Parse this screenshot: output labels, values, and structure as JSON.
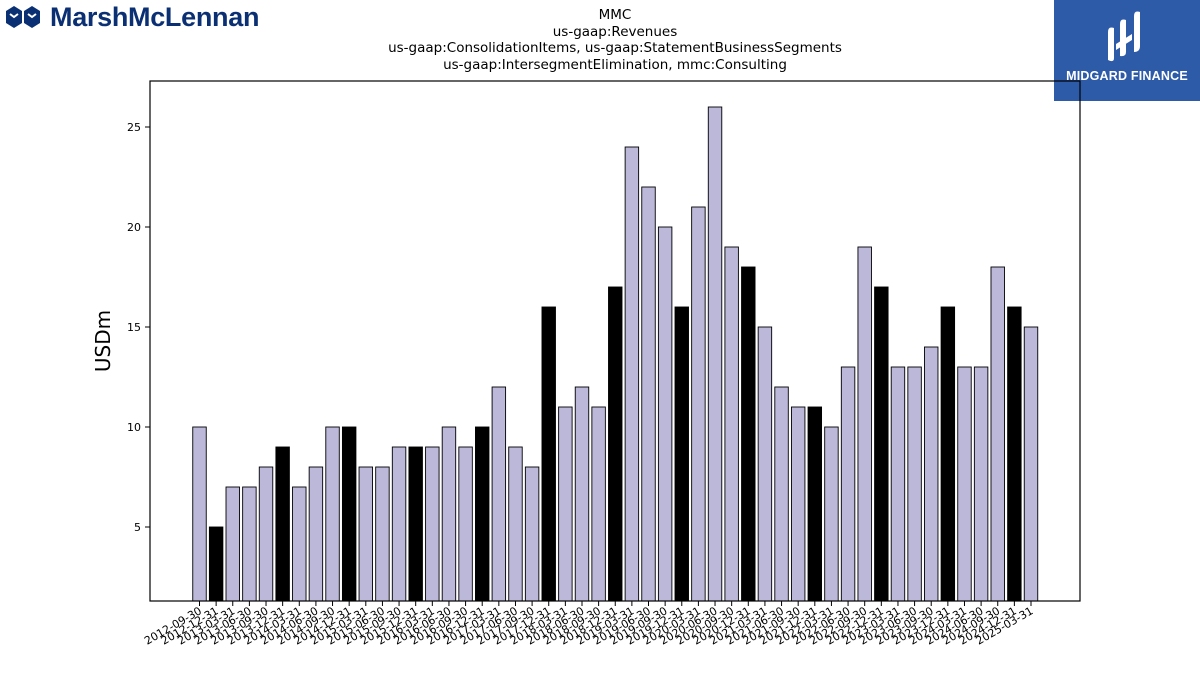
{
  "brand": {
    "name": "MarshMcLennan",
    "badge_text": "MIDGARD FINANCE"
  },
  "colors": {
    "bar_regular": "#bcb8d9",
    "bar_q4": "#000000",
    "bar_edge": "#000000",
    "brand_blue": "#0a2f73",
    "badge_blue": "#2e5ba8"
  },
  "chart_data": {
    "type": "bar",
    "title_lines": [
      "MMC",
      "us-gaap:Revenues",
      "us-gaap:ConsolidationItems, us-gaap:StatementBusinessSegments",
      "us-gaap:IntersegmentElimination, mmc:Consulting"
    ],
    "xlabel": "",
    "ylabel": "USDm",
    "ylim": [
      1.3,
      27.3
    ],
    "yticks": [
      5,
      10,
      15,
      20,
      25
    ],
    "grid": false,
    "legend": "none",
    "categories": [
      "2012-09-30",
      "2012-12-31",
      "2013-03-31",
      "2013-06-30",
      "2013-09-30",
      "2013-12-31",
      "2014-03-31",
      "2014-06-30",
      "2014-09-30",
      "2014-12-31",
      "2015-03-31",
      "2015-06-30",
      "2015-09-30",
      "2015-12-31",
      "2016-03-31",
      "2016-06-30",
      "2016-09-30",
      "2016-12-31",
      "2017-03-31",
      "2017-06-30",
      "2017-09-30",
      "2017-12-31",
      "2018-03-31",
      "2018-06-30",
      "2018-09-30",
      "2018-12-31",
      "2019-03-31",
      "2019-06-30",
      "2019-09-30",
      "2019-12-31",
      "2020-03-31",
      "2020-06-30",
      "2020-09-30",
      "2020-12-31",
      "2021-03-31",
      "2021-06-30",
      "2021-09-30",
      "2021-12-31",
      "2022-03-31",
      "2022-06-30",
      "2022-09-30",
      "2022-12-31",
      "2023-03-31",
      "2023-06-30",
      "2023-09-30",
      "2023-12-31",
      "2024-03-31",
      "2024-06-30",
      "2024-09-30",
      "2024-12-31",
      "2025-03-31"
    ],
    "values": [
      10,
      5,
      7,
      7,
      8,
      9,
      7,
      8,
      10,
      10,
      8,
      8,
      9,
      9,
      9,
      10,
      9,
      10,
      12,
      9,
      8,
      16,
      11,
      12,
      11,
      17,
      24,
      22,
      20,
      16,
      21,
      26,
      19,
      18,
      15,
      12,
      11,
      11,
      10,
      13,
      19,
      17,
      13,
      13,
      14,
      16,
      13,
      13,
      18,
      16,
      15
    ]
  }
}
